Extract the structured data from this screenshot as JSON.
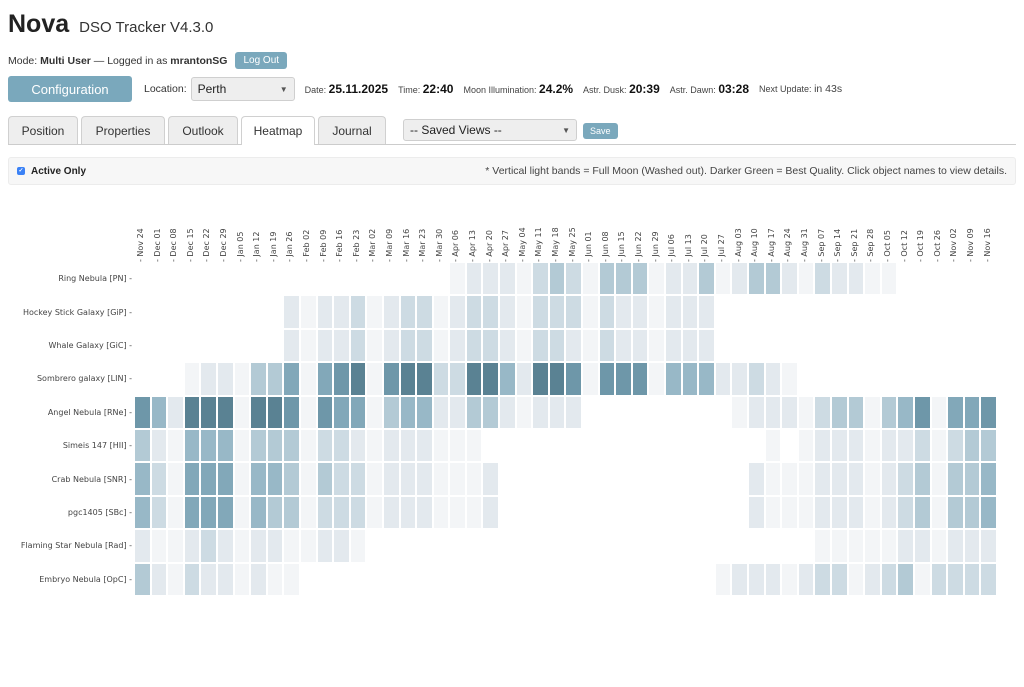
{
  "app": {
    "name": "Nova",
    "subtitle": "DSO Tracker V4.3.0"
  },
  "session": {
    "mode_label": "Mode:",
    "mode": "Multi User",
    "logged_in_text": "— Logged in as",
    "user": "mrantonSG",
    "logout_label": "Log Out"
  },
  "toolbar": {
    "config_label": "Configuration",
    "location_label": "Location:",
    "location_value": "Perth",
    "date_label": "Date:",
    "date": "25.11.2025",
    "time_label": "Time:",
    "time": "22:40",
    "moon_label": "Moon Illumination:",
    "moon": "24.2%",
    "dusk_label": "Astr. Dusk:",
    "dusk": "20:39",
    "dawn_label": "Astr. Dawn:",
    "dawn": "03:28",
    "update_label": "Next Update:",
    "update": "in 43s"
  },
  "tabs": [
    {
      "label": "Position"
    },
    {
      "label": "Properties"
    },
    {
      "label": "Outlook"
    },
    {
      "label": "Heatmap",
      "active": true
    },
    {
      "label": "Journal"
    }
  ],
  "saved_views": {
    "value": "-- Saved Views --",
    "save_label": "Save"
  },
  "filter": {
    "active_only_label": "Active Only",
    "checked": true,
    "hint": "* Vertical light bands = Full Moon (Washed out). Darker Green = Best Quality. Click object names to view details."
  },
  "colors": {
    "accent": "#7aa8bc",
    "heat_max": "#4e7889",
    "heat_min": "#eef1f4"
  },
  "chart_data": {
    "type": "heatmap",
    "title": "",
    "x": [
      "Nov 24",
      "Dec 01",
      "Dec 08",
      "Dec 15",
      "Dec 22",
      "Dec 29",
      "Jan 05",
      "Jan 12",
      "Jan 19",
      "Jan 26",
      "Feb 02",
      "Feb 09",
      "Feb 16",
      "Feb 23",
      "Mar 02",
      "Mar 09",
      "Mar 16",
      "Mar 23",
      "Mar 30",
      "Apr 06",
      "Apr 13",
      "Apr 20",
      "Apr 27",
      "May 04",
      "May 11",
      "May 18",
      "May 25",
      "Jun 01",
      "Jun 08",
      "Jun 15",
      "Jun 22",
      "Jun 29",
      "Jul 06",
      "Jul 13",
      "Jul 20",
      "Jul 27",
      "Aug 03",
      "Aug 10",
      "Aug 17",
      "Aug 24",
      "Aug 31",
      "Sep 07",
      "Sep 14",
      "Sep 21",
      "Sep 28",
      "Oct 05",
      "Oct 12",
      "Oct 19",
      "Oct 26",
      "Nov 02",
      "Nov 09",
      "Nov 16"
    ],
    "y": [
      "Ring Nebula [PN]",
      "Hockey Stick Galaxy [GiP]",
      "Whale Galaxy [GiC]",
      "Sombrero galaxy [LIN]",
      "Angel Nebula [RNe]",
      "Simeis 147 [HII]",
      "Crab Nebula [SNR]",
      "pgc1405 [SBc]",
      "Flaming Star Nebula [Rad]",
      "Embryo Nebula [OpC]"
    ],
    "scale": "0 = no data (blank), 1 = very light ... 9 = darkest (best quality)",
    "values": [
      [
        0,
        0,
        0,
        0,
        0,
        0,
        0,
        0,
        0,
        0,
        0,
        0,
        0,
        0,
        0,
        0,
        0,
        0,
        0,
        1,
        2,
        2,
        2,
        1,
        3,
        4,
        3,
        1,
        4,
        4,
        4,
        1,
        2,
        2,
        4,
        1,
        2,
        4,
        4,
        2,
        1,
        3,
        2,
        2,
        1,
        1,
        0,
        0,
        0,
        0,
        0,
        0
      ],
      [
        0,
        0,
        0,
        0,
        0,
        0,
        0,
        0,
        0,
        2,
        1,
        2,
        2,
        3,
        1,
        2,
        3,
        3,
        1,
        2,
        3,
        3,
        2,
        1,
        3,
        3,
        3,
        1,
        3,
        2,
        2,
        1,
        2,
        2,
        2,
        0,
        0,
        0,
        0,
        0,
        0,
        0,
        0,
        0,
        0,
        0,
        0,
        0,
        0,
        0,
        0,
        0
      ],
      [
        0,
        0,
        0,
        0,
        0,
        0,
        0,
        0,
        0,
        2,
        1,
        2,
        2,
        3,
        1,
        2,
        3,
        3,
        1,
        2,
        3,
        3,
        2,
        1,
        3,
        3,
        2,
        1,
        3,
        2,
        2,
        1,
        2,
        2,
        2,
        0,
        0,
        0,
        0,
        0,
        0,
        0,
        0,
        0,
        0,
        0,
        0,
        0,
        0,
        0,
        0,
        0
      ],
      [
        0,
        0,
        0,
        1,
        2,
        2,
        1,
        4,
        4,
        6,
        1,
        6,
        7,
        8,
        1,
        7,
        8,
        8,
        3,
        3,
        8,
        8,
        5,
        2,
        8,
        8,
        7,
        1,
        7,
        7,
        7,
        1,
        5,
        5,
        5,
        2,
        2,
        3,
        2,
        1,
        0,
        0,
        0,
        0,
        0,
        0,
        0,
        0,
        0,
        0,
        0,
        0
      ],
      [
        7,
        5,
        2,
        8,
        8,
        8,
        1,
        8,
        8,
        7,
        1,
        7,
        6,
        6,
        1,
        4,
        5,
        5,
        2,
        2,
        4,
        4,
        2,
        1,
        2,
        2,
        2,
        0,
        0,
        0,
        0,
        0,
        0,
        0,
        0,
        0,
        1,
        2,
        2,
        2,
        1,
        3,
        4,
        4,
        1,
        4,
        5,
        7,
        1,
        6,
        6,
        7
      ],
      [
        4,
        2,
        1,
        5,
        5,
        5,
        1,
        4,
        4,
        4,
        1,
        3,
        3,
        2,
        1,
        2,
        2,
        2,
        1,
        1,
        1,
        0,
        0,
        0,
        0,
        0,
        0,
        0,
        0,
        0,
        0,
        0,
        0,
        0,
        0,
        0,
        0,
        0,
        1,
        0,
        1,
        2,
        2,
        2,
        1,
        2,
        2,
        3,
        1,
        3,
        4,
        4
      ],
      [
        5,
        3,
        1,
        6,
        6,
        6,
        1,
        5,
        5,
        4,
        1,
        4,
        3,
        3,
        1,
        2,
        2,
        2,
        1,
        1,
        1,
        2,
        0,
        0,
        0,
        0,
        0,
        0,
        0,
        0,
        0,
        0,
        0,
        0,
        0,
        0,
        0,
        2,
        1,
        1,
        1,
        2,
        2,
        2,
        1,
        2,
        3,
        4,
        1,
        4,
        4,
        5
      ],
      [
        5,
        3,
        1,
        6,
        6,
        6,
        1,
        5,
        4,
        4,
        1,
        3,
        3,
        3,
        1,
        2,
        2,
        2,
        1,
        1,
        1,
        2,
        0,
        0,
        0,
        0,
        0,
        0,
        0,
        0,
        0,
        0,
        0,
        0,
        0,
        0,
        0,
        2,
        1,
        1,
        1,
        2,
        2,
        2,
        1,
        2,
        3,
        4,
        1,
        4,
        4,
        5
      ],
      [
        2,
        1,
        1,
        2,
        3,
        2,
        1,
        2,
        2,
        1,
        1,
        2,
        2,
        1,
        0,
        0,
        0,
        0,
        0,
        0,
        0,
        0,
        0,
        0,
        0,
        0,
        0,
        0,
        0,
        0,
        0,
        0,
        0,
        0,
        0,
        0,
        0,
        0,
        0,
        0,
        0,
        1,
        1,
        1,
        1,
        1,
        2,
        2,
        1,
        2,
        2,
        2
      ],
      [
        4,
        2,
        1,
        3,
        2,
        2,
        1,
        2,
        1,
        1,
        0,
        0,
        0,
        0,
        0,
        0,
        0,
        0,
        0,
        0,
        0,
        0,
        0,
        0,
        0,
        0,
        0,
        0,
        0,
        0,
        0,
        0,
        0,
        0,
        0,
        1,
        2,
        2,
        2,
        1,
        2,
        3,
        3,
        1,
        2,
        3,
        4,
        1,
        3,
        3,
        3,
        3
      ]
    ],
    "legend": "Darker = Best Quality; light vertical bands = Full Moon"
  }
}
